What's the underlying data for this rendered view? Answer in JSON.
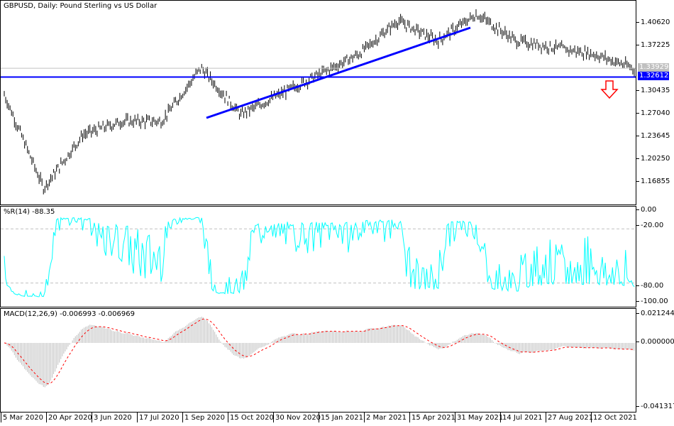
{
  "chart_data": [
    {
      "type": "ohlc",
      "title": "GBPUSD, Daily:  Pound Sterling vs US Dollar",
      "symbol": "GBPUSD",
      "timeframe": "Daily",
      "description": "Pound Sterling vs US Dollar",
      "y_ticks": [
        "1.40620",
        "1.37225",
        "1.30435",
        "1.27040",
        "1.23645",
        "1.20250",
        "1.16855"
      ],
      "ylim": [
        1.14,
        1.42
      ],
      "current_price": "1.33929",
      "horizontal_line": {
        "value": "1.32612",
        "color": "#0000ff"
      },
      "trendlines": [
        {
          "from": [
            "1 Sep 2020",
            1.265
          ],
          "to": [
            "31 May 2021",
            1.4
          ],
          "color": "#0000ff"
        }
      ],
      "annotation": {
        "type": "down-arrow",
        "color": "#ff0000",
        "near": "1.30435"
      },
      "approx_closes": [
        {
          "x": "5 Mar 2020",
          "y": 1.3
        },
        {
          "x": "20 Mar 2020",
          "y": 1.16
        },
        {
          "x": "20 Apr 2020",
          "y": 1.24
        },
        {
          "x": "3 Jun 2020",
          "y": 1.26
        },
        {
          "x": "17 Jul 2020",
          "y": 1.26
        },
        {
          "x": "1 Sep 2020",
          "y": 1.34
        },
        {
          "x": "25 Sep 2020",
          "y": 1.27
        },
        {
          "x": "15 Oct 2020",
          "y": 1.3
        },
        {
          "x": "30 Nov 2020",
          "y": 1.33
        },
        {
          "x": "15 Jan 2021",
          "y": 1.36
        },
        {
          "x": "24 Feb 2021",
          "y": 1.41
        },
        {
          "x": "15 Apr 2021",
          "y": 1.38
        },
        {
          "x": "31 May 2021",
          "y": 1.42
        },
        {
          "x": "14 Jul 2021",
          "y": 1.38
        },
        {
          "x": "27 Aug 2021",
          "y": 1.37
        },
        {
          "x": "12 Oct 2021",
          "y": 1.36
        },
        {
          "x": "end",
          "y": 1.339
        }
      ]
    },
    {
      "type": "line",
      "title": "%R(14) -88.35",
      "indicator": "Williams %R",
      "period": 14,
      "last_value": "-88.35",
      "y_ticks": [
        "0.00",
        "-20.00",
        "-80.00",
        "-100.00"
      ],
      "levels": [
        -20,
        -80
      ],
      "ylim": [
        -100,
        0
      ],
      "color": "#00ffff"
    },
    {
      "type": "bar+line",
      "title": "MACD(12,26,9) -0.006993 -0.006969",
      "indicator": "MACD",
      "params": "12,26,9",
      "macd_value": "-0.006993",
      "signal_value": "-0.006969",
      "y_ticks": [
        "0.021244",
        "0.000000",
        "-0.041317"
      ],
      "ylim": [
        -0.041317,
        0.021244
      ],
      "histogram_color": "#c0c0c0",
      "signal_color": "#ff0000"
    }
  ],
  "header": {
    "title": "GBPUSD, Daily:  Pound Sterling vs US Dollar"
  },
  "price_axis": {
    "ticks": [
      "1.40620",
      "1.37225",
      "1.30435",
      "1.27040",
      "1.23645",
      "1.20250",
      "1.16855"
    ],
    "current_price": "1.33929",
    "line_price": "1.32612"
  },
  "wpr": {
    "label": "%R(14) -88.35",
    "ticks": [
      "0.00",
      "-20.00",
      "-80.00",
      "-100.00"
    ]
  },
  "macd": {
    "label": "MACD(12,26,9) -0.006993 -0.006969",
    "ticks": [
      "0.021244",
      "0.000000",
      "-0.041317"
    ]
  },
  "time_axis": {
    "labels": [
      "5 Mar 2020",
      "20 Apr 2020",
      "3 Jun 2020",
      "17 Jul 2020",
      "1 Sep 2020",
      "15 Oct 2020",
      "30 Nov 2020",
      "15 Jan 2021",
      "2 Mar 2021",
      "15 Apr 2021",
      "31 May 2021",
      "14 Jul 2021",
      "27 Aug 2021",
      "12 Oct 2021"
    ]
  },
  "colors": {
    "bars": "#000000",
    "blue_lines": "#0000ff",
    "wpr": "#00ffff",
    "macd_hist": "#c0c0c0",
    "signal": "#ff0000",
    "current_price_bg": "#c0c0c0",
    "line_price_bg": "#0000ff"
  }
}
